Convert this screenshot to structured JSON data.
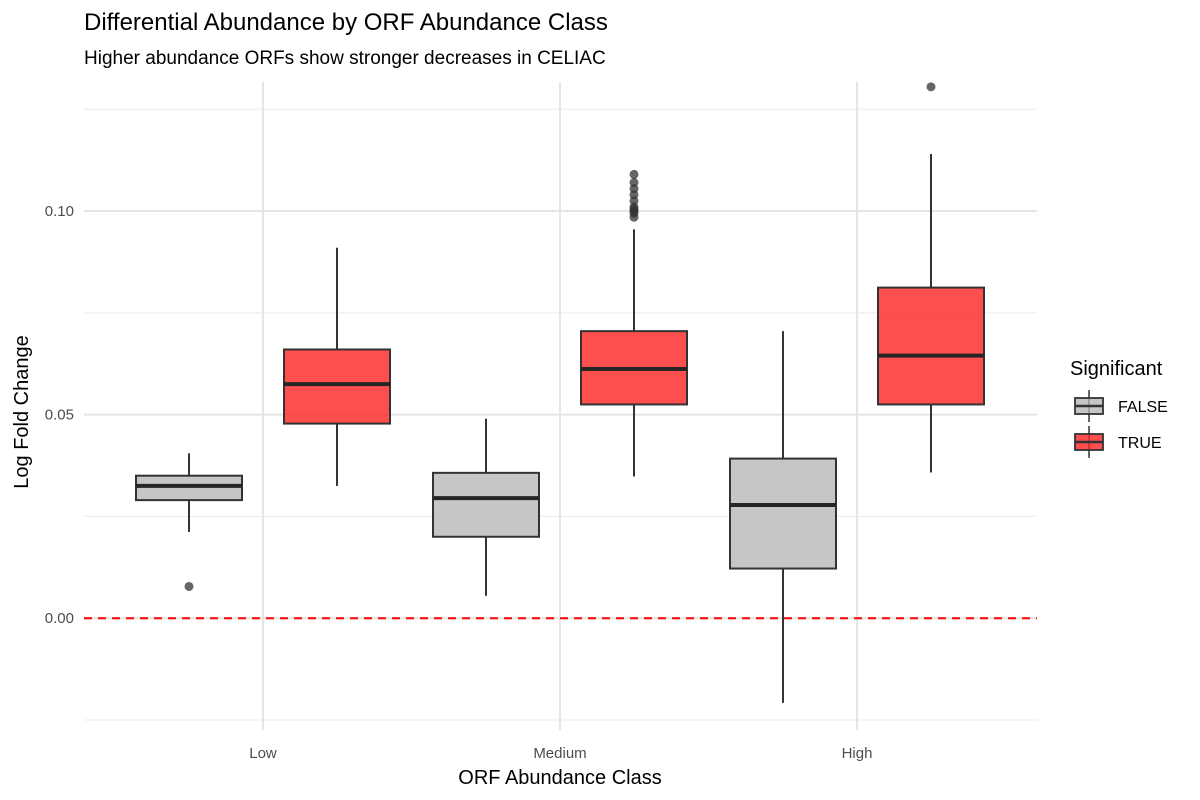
{
  "chart_data": {
    "type": "boxplot",
    "title": "Differential Abundance by ORF Abundance Class",
    "subtitle": "Higher abundance ORFs show stronger decreases in CELIAC",
    "xlabel": "ORF Abundance Class",
    "ylabel": "Log Fold Change",
    "categories": [
      "Low",
      "Medium",
      "High"
    ],
    "ylim": [
      -0.025,
      0.1285
    ],
    "yticks": [
      0.0,
      0.05,
      0.1
    ],
    "ytick_labels": [
      "0.00",
      "0.05",
      "0.10"
    ],
    "reference_line": {
      "y": 0.0,
      "color": "#ff0000",
      "style": "dashed"
    },
    "legend": {
      "title": "Significant",
      "position": "right",
      "entries": [
        {
          "label": "FALSE",
          "color": "#b3b3b3"
        },
        {
          "label": "TRUE",
          "color": "#ff2222"
        }
      ]
    },
    "series": [
      {
        "name": "FALSE",
        "color": "#b3b3b3",
        "boxes": [
          {
            "category": "Low",
            "whisker_low": 0.0212,
            "q1": 0.029,
            "median": 0.0325,
            "q3": 0.035,
            "whisker_high": 0.0405,
            "outliers": [
              0.0078
            ]
          },
          {
            "category": "Medium",
            "whisker_low": 0.0055,
            "q1": 0.02,
            "median": 0.0295,
            "q3": 0.0357,
            "whisker_high": 0.049,
            "outliers": []
          },
          {
            "category": "High",
            "whisker_low": -0.0208,
            "q1": 0.0122,
            "median": 0.0278,
            "q3": 0.0392,
            "whisker_high": 0.0705,
            "outliers": []
          }
        ]
      },
      {
        "name": "TRUE",
        "color": "#ff2222",
        "boxes": [
          {
            "category": "Low",
            "whisker_low": 0.0325,
            "q1": 0.0478,
            "median": 0.0575,
            "q3": 0.066,
            "whisker_high": 0.091,
            "outliers": []
          },
          {
            "category": "Medium",
            "whisker_low": 0.0348,
            "q1": 0.0525,
            "median": 0.0612,
            "q3": 0.0705,
            "whisker_high": 0.0955,
            "outliers": [
              0.0985,
              0.0995,
              0.1,
              0.1005,
              0.101,
              0.1025,
              0.104,
              0.1055,
              0.107,
              0.109
            ]
          },
          {
            "category": "High",
            "whisker_low": 0.0358,
            "q1": 0.0525,
            "median": 0.0645,
            "q3": 0.0812,
            "whisker_high": 0.114,
            "outliers": [
              0.1305
            ]
          }
        ]
      }
    ]
  }
}
